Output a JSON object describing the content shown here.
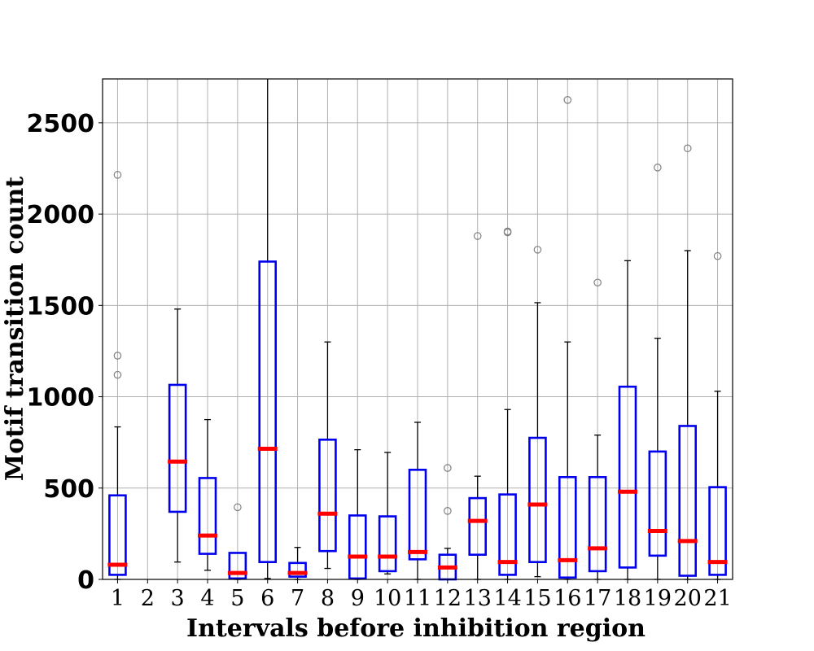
{
  "chart_data": {
    "type": "boxplot",
    "xlabel": "Intervals before inhibition region",
    "ylabel": "Motif transition count",
    "categories": [
      "1",
      "2",
      "3",
      "4",
      "5",
      "6",
      "7",
      "8",
      "9",
      "10",
      "11",
      "12",
      "13",
      "14",
      "15",
      "16",
      "17",
      "18",
      "19",
      "20",
      "21"
    ],
    "ylim": [
      0,
      2740
    ],
    "yticks": [
      0,
      500,
      1000,
      1500,
      2000,
      2500
    ],
    "grid": true,
    "colors": {
      "box": "#0000ee",
      "median": "#ff0000",
      "whisker": "#000000",
      "outlier": "#808080",
      "grid": "#b0b0b0"
    },
    "boxes": [
      {
        "category": "1",
        "whislo": 0,
        "q1": 25,
        "med": 80,
        "q3": 460,
        "whishi": 835,
        "fliers": [
          1120,
          1225,
          2215
        ]
      },
      {
        "category": "2",
        "empty": true
      },
      {
        "category": "3",
        "whislo": 95,
        "q1": 370,
        "med": 645,
        "q3": 1065,
        "whishi": 1480,
        "fliers": []
      },
      {
        "category": "4",
        "whislo": 50,
        "q1": 140,
        "med": 240,
        "q3": 555,
        "whishi": 875,
        "fliers": []
      },
      {
        "category": "5",
        "whislo": 0,
        "q1": 5,
        "med": 35,
        "q3": 145,
        "whishi": 145,
        "fliers": [
          395
        ]
      },
      {
        "category": "6",
        "whislo": 5,
        "q1": 95,
        "med": 715,
        "q3": 1740,
        "whishi": 2740,
        "fliers": []
      },
      {
        "category": "7",
        "whislo": 0,
        "q1": 15,
        "med": 35,
        "q3": 90,
        "whishi": 175,
        "fliers": []
      },
      {
        "category": "8",
        "whislo": 60,
        "q1": 155,
        "med": 360,
        "q3": 765,
        "whishi": 1300,
        "fliers": []
      },
      {
        "category": "9",
        "whislo": 0,
        "q1": 5,
        "med": 125,
        "q3": 350,
        "whishi": 710,
        "fliers": []
      },
      {
        "category": "10",
        "whislo": 30,
        "q1": 45,
        "med": 125,
        "q3": 345,
        "whishi": 695,
        "fliers": []
      },
      {
        "category": "11",
        "whislo": 0,
        "q1": 110,
        "med": 150,
        "q3": 600,
        "whishi": 860,
        "fliers": []
      },
      {
        "category": "12",
        "whislo": 0,
        "q1": 0,
        "med": 65,
        "q3": 135,
        "whishi": 170,
        "fliers": [
          375,
          610
        ]
      },
      {
        "category": "13",
        "whislo": 0,
        "q1": 135,
        "med": 320,
        "q3": 445,
        "whishi": 565,
        "fliers": [
          1880
        ]
      },
      {
        "category": "14",
        "whislo": 0,
        "q1": 25,
        "med": 95,
        "q3": 465,
        "whishi": 930,
        "fliers": [
          1900,
          1905
        ]
      },
      {
        "category": "15",
        "whislo": 15,
        "q1": 95,
        "med": 410,
        "q3": 775,
        "whishi": 1515,
        "fliers": [
          1805
        ]
      },
      {
        "category": "16",
        "whislo": 0,
        "q1": 10,
        "med": 105,
        "q3": 560,
        "whishi": 1300,
        "fliers": [
          2625
        ]
      },
      {
        "category": "17",
        "whislo": 0,
        "q1": 45,
        "med": 170,
        "q3": 560,
        "whishi": 790,
        "fliers": [
          1625
        ]
      },
      {
        "category": "18",
        "whislo": 0,
        "q1": 65,
        "med": 480,
        "q3": 1055,
        "whishi": 1745,
        "fliers": []
      },
      {
        "category": "19",
        "whislo": 0,
        "q1": 130,
        "med": 265,
        "q3": 700,
        "whishi": 1320,
        "fliers": [
          2255
        ]
      },
      {
        "category": "20",
        "whislo": 0,
        "q1": 20,
        "med": 210,
        "q3": 840,
        "whishi": 1800,
        "fliers": [
          2360
        ]
      },
      {
        "category": "21",
        "whislo": 0,
        "q1": 25,
        "med": 95,
        "q3": 505,
        "whishi": 1030,
        "fliers": [
          1770
        ]
      }
    ]
  }
}
